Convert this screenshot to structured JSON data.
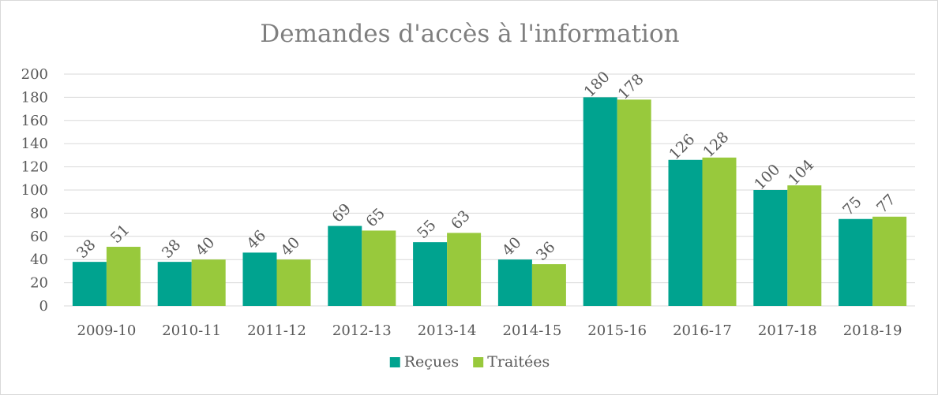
{
  "chart_data": {
    "type": "bar",
    "title": "Demandes d'accès à l'information",
    "categories": [
      "2009-10",
      "2010-11",
      "2011-12",
      "2012-13",
      "2013-14",
      "2014-15",
      "2015-16",
      "2016-17",
      "2017-18",
      "2018-19"
    ],
    "series": [
      {
        "name": "Reçues",
        "values": [
          38,
          38,
          46,
          69,
          55,
          40,
          180,
          126,
          100,
          75
        ],
        "color": "#00a38f"
      },
      {
        "name": "Traitées",
        "values": [
          51,
          40,
          40,
          65,
          63,
          36,
          178,
          128,
          104,
          77
        ],
        "color": "#98c93c"
      }
    ],
    "ylim": [
      0,
      200
    ],
    "yticks": [
      0,
      20,
      40,
      60,
      80,
      100,
      120,
      140,
      160,
      180,
      200
    ],
    "grid": true,
    "legend_position": "bottom",
    "data_labels": true
  }
}
